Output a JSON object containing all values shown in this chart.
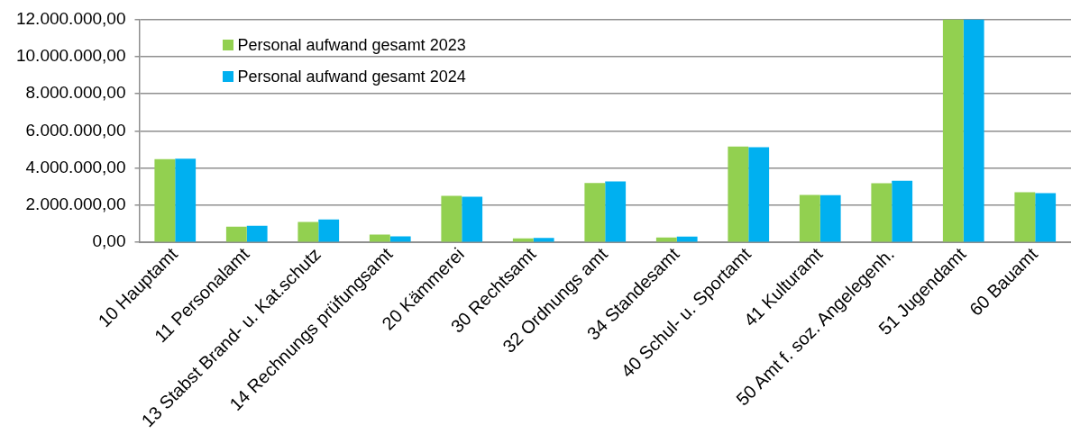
{
  "chart_data": {
    "type": "bar",
    "categories": [
      "10 Hauptamt",
      "11 Personalamt",
      "13 Stabst Brand- u. Kat.schutz",
      "14 Rechnungs prüfungsamt",
      "20 Kämmerei",
      "30 Rechtsamt",
      "32 Ordnungs amt",
      "34 Standesamt",
      "40 Schul- u. Sportamt",
      "41 Kulturamt",
      "50 Amt f. soz. Angelegenh.",
      "51 Jugendamt",
      "60 Bauamt"
    ],
    "series": [
      {
        "name": "Personal aufwand gesamt 2023",
        "color": "#92d050",
        "values": [
          4480000,
          840000,
          1100000,
          420000,
          2500000,
          220000,
          3200000,
          270000,
          5150000,
          2550000,
          3180000,
          12000000,
          2700000
        ]
      },
      {
        "name": "Personal aufwand gesamt 2024",
        "color": "#00b0f0",
        "values": [
          4500000,
          890000,
          1230000,
          320000,
          2450000,
          240000,
          3280000,
          310000,
          5120000,
          2540000,
          3320000,
          12000000,
          2650000
        ]
      }
    ],
    "ylim": [
      0,
      12000000
    ],
    "yticks": [
      {
        "value": 0,
        "label": "0,00"
      },
      {
        "value": 2000000,
        "label": "2.000.000,00"
      },
      {
        "value": 4000000,
        "label": "4.000.000,00"
      },
      {
        "value": 6000000,
        "label": "6.000.000,00"
      },
      {
        "value": 8000000,
        "label": "8.000.000,00"
      },
      {
        "value": 10000000,
        "label": "10.000.000,00"
      },
      {
        "value": 12000000,
        "label": "12.000.000,00"
      }
    ],
    "grid": "y",
    "legend": "top left"
  }
}
